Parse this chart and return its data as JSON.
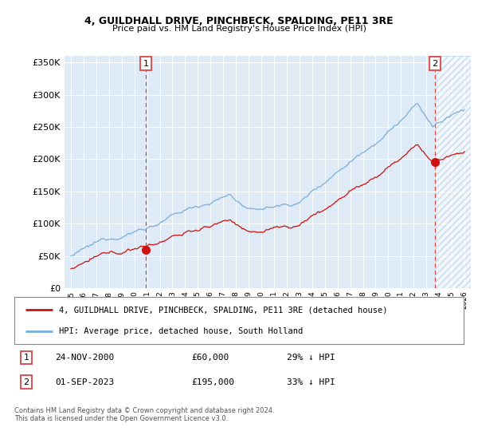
{
  "title": "4, GUILDHALL DRIVE, PINCHBECK, SPALDING, PE11 3RE",
  "subtitle": "Price paid vs. HM Land Registry's House Price Index (HPI)",
  "legend_label1": "4, GUILDHALL DRIVE, PINCHBECK, SPALDING, PE11 3RE (detached house)",
  "legend_label2": "HPI: Average price, detached house, South Holland",
  "annotation1_date": "24-NOV-2000",
  "annotation1_price": "£60,000",
  "annotation1_hpi": "29% ↓ HPI",
  "annotation2_date": "01-SEP-2023",
  "annotation2_price": "£195,000",
  "annotation2_hpi": "33% ↓ HPI",
  "copyright": "Contains HM Land Registry data © Crown copyright and database right 2024.\nThis data is licensed under the Open Government Licence v3.0.",
  "hpi_color": "#7aaddc",
  "price_color": "#cc1111",
  "vline_color": "#dd4444",
  "background_color": "#deeaf5",
  "ylim": [
    0,
    360000
  ],
  "yticks": [
    0,
    50000,
    100000,
    150000,
    200000,
    250000,
    300000,
    350000
  ],
  "sale1_x": 2000.9,
  "sale1_y": 60000,
  "sale2_x": 2023.67,
  "sale2_y": 195000,
  "xmin": 1994.5,
  "xmax": 2026.5
}
